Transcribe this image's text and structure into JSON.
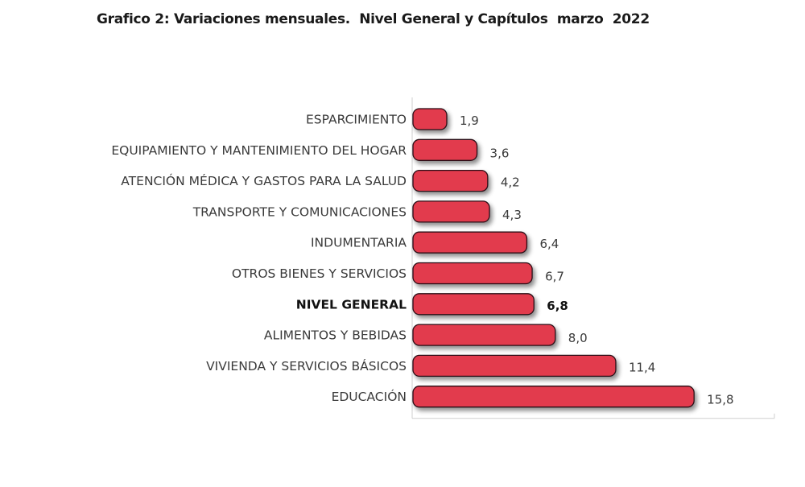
{
  "title": "Grafico 2: Variaciones mensuales.  Nivel General y Capítulos  marzo  2022",
  "colors": {
    "bar": "#e23a4e",
    "bar_stroke": "#2a1015",
    "axis": "#cfcfcf"
  },
  "chart_data": {
    "type": "bar",
    "orientation": "horizontal",
    "categories": [
      "ESPARCIMIENTO",
      "EQUIPAMIENTO Y MANTENIMIENTO DEL HOGAR",
      "ATENCIÓN MÉDICA Y GASTOS PARA LA SALUD",
      "TRANSPORTE Y COMUNICACIONES",
      "INDUMENTARIA",
      "OTROS BIENES Y SERVICIOS",
      "NIVEL GENERAL",
      "ALIMENTOS Y BEBIDAS",
      "VIVIENDA Y SERVICIOS BÁSICOS",
      "EDUCACIÓN"
    ],
    "values": [
      1.9,
      3.6,
      4.2,
      4.3,
      6.4,
      6.7,
      6.8,
      8.0,
      11.4,
      15.8
    ],
    "value_labels": [
      "1,9",
      "3,6",
      "4,2",
      "4,3",
      "6,4",
      "6,7",
      "6,8",
      "8,0",
      "11,4",
      "15,8"
    ],
    "highlight": "NIVEL GENERAL",
    "xlim": [
      0,
      20
    ],
    "grid": false,
    "legend": "none"
  }
}
